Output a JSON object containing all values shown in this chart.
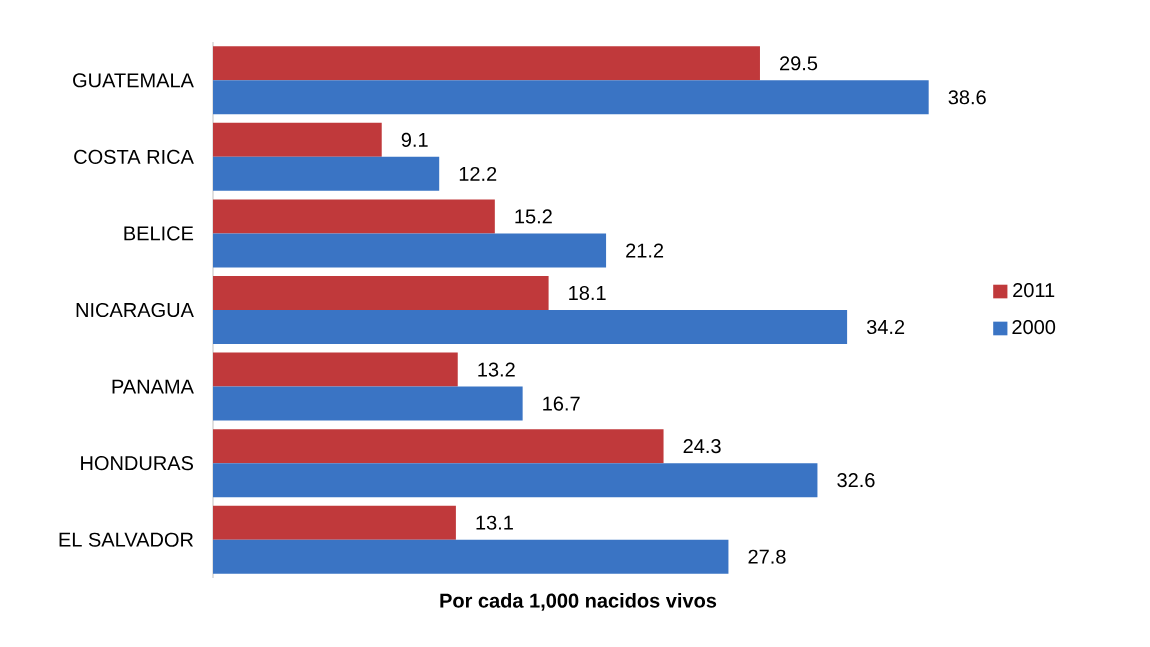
{
  "chart_data": {
    "type": "bar",
    "orientation": "horizontal",
    "xlabel": "Por cada 1,000 nacidos vivos",
    "categories": [
      "GUATEMALA",
      "COSTA RICA",
      "BELICE",
      "NICARAGUA",
      "PANAMA",
      "HONDURAS",
      "EL SALVADOR"
    ],
    "series": [
      {
        "name": "2011",
        "color": "#c0393b",
        "values": [
          29.5,
          9.1,
          15.2,
          18.1,
          13.2,
          24.3,
          13.1
        ]
      },
      {
        "name": "2000",
        "color": "#3a74c4",
        "values": [
          38.6,
          12.2,
          21.2,
          34.2,
          16.7,
          32.6,
          27.8
        ]
      }
    ],
    "data_labels": true,
    "legend": "right"
  }
}
